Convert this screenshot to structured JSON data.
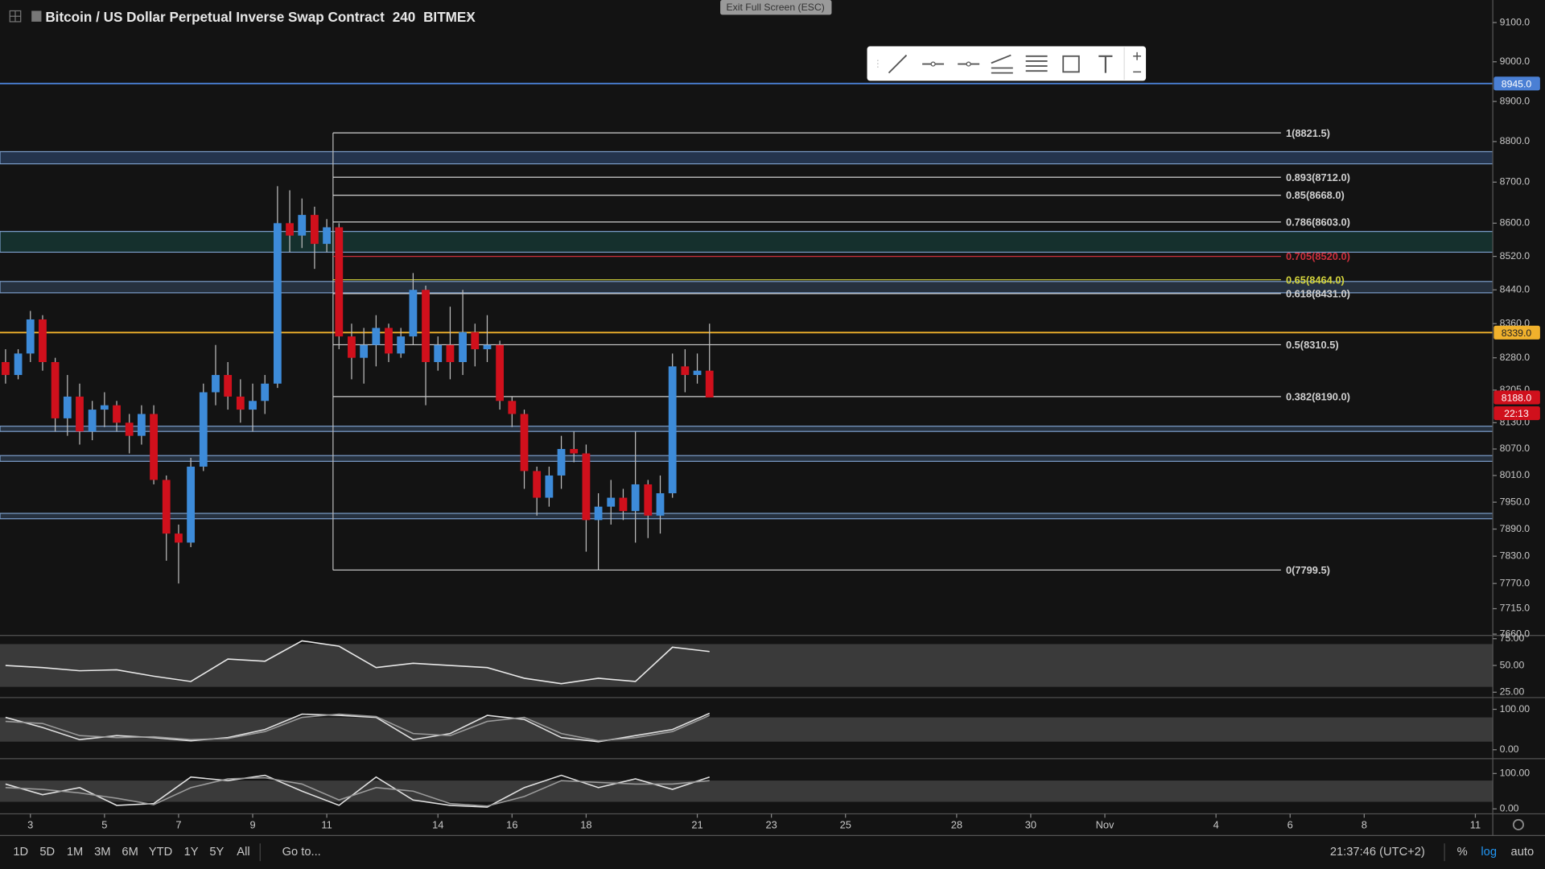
{
  "header": {
    "title": "Bitcoin / US Dollar Perpetual Inverse Swap Contract",
    "interval": "240",
    "exchange": "BITMEX",
    "exit_button": "Exit Full Screen (ESC)"
  },
  "bottom_bar": {
    "ranges": [
      "1D",
      "5D",
      "1M",
      "3M",
      "6M",
      "YTD",
      "1Y",
      "5Y",
      "All"
    ],
    "goto": "Go to...",
    "time": "21:37:46 (UTC+2)",
    "percent": "%",
    "log": "log",
    "auto": "auto"
  },
  "chart_data": [
    {
      "type": "candlestick",
      "log_scale": true,
      "up_color": "#3d8bd9",
      "down_color": "#d0101c",
      "xlim": [
        2.18,
        42.47
      ],
      "xticks": [
        3,
        5,
        7,
        9,
        11,
        14,
        16,
        18,
        21,
        23,
        25,
        28,
        30,
        {
          "value": 32,
          "label": "Nov"
        },
        {
          "value": 35,
          "label": "4"
        },
        {
          "value": 37,
          "label": "6"
        },
        {
          "value": 39,
          "label": "8"
        },
        {
          "value": 42,
          "label": "11"
        }
      ],
      "ylim": [
        7657,
        9158
      ],
      "yticks": [
        {
          "value": 9100,
          "label": "9100.0"
        },
        {
          "value": 9000,
          "label": "9000.0"
        },
        {
          "value": 8900,
          "label": "8900.0"
        },
        {
          "value": 8800,
          "label": "8800.0"
        },
        {
          "value": 8700,
          "label": "8700.0"
        },
        {
          "value": 8600,
          "label": "8600.0"
        },
        {
          "value": 8520,
          "label": "8520.0"
        },
        {
          "value": 8440,
          "label": "8440.0"
        },
        {
          "value": 8360,
          "label": "8360.0"
        },
        {
          "value": 8280,
          "label": "8280.0"
        },
        {
          "value": 8205,
          "label": "8205.0"
        },
        {
          "value": 8130,
          "label": "8130.0"
        },
        {
          "value": 8070,
          "label": "8070.0"
        },
        {
          "value": 8010,
          "label": "8010.0"
        },
        {
          "value": 7950,
          "label": "7950.0"
        },
        {
          "value": 7890,
          "label": "7890.0"
        },
        {
          "value": 7830,
          "label": "7830.0"
        },
        {
          "value": 7770,
          "label": "7770.0"
        },
        {
          "value": 7715,
          "label": "7715.0"
        },
        {
          "value": 7660,
          "label": "7660.0"
        }
      ],
      "candles": {
        "x": [
          2.33,
          2.67,
          3,
          3.33,
          3.67,
          4,
          4.33,
          4.67,
          5,
          5.33,
          5.67,
          6,
          6.33,
          6.67,
          7,
          7.33,
          7.67,
          8,
          8.33,
          8.67,
          9,
          9.33,
          9.67,
          10,
          10.33,
          10.67,
          11,
          11.33,
          11.67,
          12,
          12.33,
          12.67,
          13,
          13.33,
          13.67,
          14,
          14.33,
          14.67,
          15,
          15.33,
          15.67,
          16,
          16.33,
          16.67,
          17,
          17.33,
          17.67,
          18,
          18.33,
          18.67,
          19,
          19.33,
          19.67,
          20,
          20.33,
          20.67,
          21,
          21.33
        ],
        "open": [
          8270,
          8240,
          8290,
          8370,
          8270,
          8140,
          8190,
          8110,
          8160,
          8170,
          8130,
          8100,
          8150,
          8000,
          7880,
          7860,
          8030,
          8200,
          8240,
          8190,
          8160,
          8180,
          8220,
          8600,
          8570,
          8620,
          8550,
          8590,
          8330,
          8280,
          8310,
          8350,
          8290,
          8330,
          8440,
          8270,
          8310,
          8270,
          8340,
          8300,
          8310,
          8180,
          8150,
          8020,
          7960,
          8010,
          8070,
          8060,
          7910,
          7940,
          7960,
          7930,
          7990,
          7920,
          7970,
          8260,
          8240,
          8250
        ],
        "high": [
          8300,
          8300,
          8390,
          8380,
          8280,
          8240,
          8220,
          8180,
          8200,
          8180,
          8150,
          8170,
          8170,
          8010,
          7900,
          8050,
          8220,
          8310,
          8270,
          8230,
          8220,
          8240,
          8690,
          8680,
          8660,
          8640,
          8610,
          8600,
          8360,
          8350,
          8380,
          8360,
          8350,
          8480,
          8450,
          8330,
          8400,
          8440,
          8360,
          8380,
          8320,
          8190,
          8160,
          8030,
          8030,
          8100,
          8110,
          8080,
          7970,
          8000,
          7980,
          8110,
          8000,
          8010,
          8290,
          8300,
          8290,
          8360
        ],
        "low": [
          8220,
          8230,
          8270,
          8250,
          8110,
          8100,
          8080,
          8090,
          8120,
          8110,
          8060,
          8080,
          7990,
          7820,
          7770,
          7850,
          8020,
          8170,
          8160,
          8130,
          8110,
          8150,
          8210,
          8530,
          8540,
          8490,
          8530,
          8300,
          8230,
          8220,
          8260,
          8270,
          8280,
          8310,
          8170,
          8250,
          8230,
          8240,
          8260,
          8270,
          8160,
          8120,
          7980,
          7920,
          7940,
          7980,
          8040,
          7840,
          7800,
          7900,
          7910,
          7860,
          7870,
          7880,
          7960,
          8200,
          8220,
          8190
        ],
        "close": [
          8240,
          8290,
          8370,
          8270,
          8140,
          8190,
          8110,
          8160,
          8170,
          8130,
          8100,
          8150,
          8000,
          7880,
          7860,
          8030,
          8200,
          8240,
          8190,
          8160,
          8180,
          8220,
          8600,
          8570,
          8620,
          8550,
          8590,
          8330,
          8280,
          8310,
          8350,
          8290,
          8330,
          8440,
          8270,
          8310,
          8270,
          8340,
          8300,
          8310,
          8180,
          8150,
          8020,
          7960,
          8010,
          8070,
          8060,
          7910,
          7940,
          7960,
          7930,
          7990,
          7920,
          7970,
          8260,
          8240,
          8250,
          8188
        ]
      },
      "lines": [
        {
          "value": 8945,
          "color": "#4a7fd4"
        },
        {
          "value": 8339,
          "color": "#f0b12c"
        }
      ],
      "zones": [
        {
          "from": 8745,
          "to": 8775,
          "color": "#24344d"
        },
        {
          "from": 8530,
          "to": 8580,
          "color": "#15302d"
        },
        {
          "from": 8433,
          "to": 8460,
          "color": "#26313f"
        },
        {
          "from": 8110,
          "to": 8122,
          "color": "#26313f"
        },
        {
          "from": 8042,
          "to": 8055,
          "color": "#26313f"
        },
        {
          "from": 7913,
          "to": 7925,
          "color": "#26313f"
        }
      ],
      "fib": [
        {
          "label": "1(8821.5)",
          "value": 8821.5,
          "color": "#d0d0d0"
        },
        {
          "label": "0.893(8712.0)",
          "value": 8712,
          "color": "#d0d0d0"
        },
        {
          "label": "0.85(8668.0)",
          "value": 8668,
          "color": "#d0d0d0"
        },
        {
          "label": "0.786(8603.0)",
          "value": 8603,
          "color": "#d0d0d0"
        },
        {
          "label": "0.705(8520.0)",
          "value": 8520,
          "color": "#cc2f3c"
        },
        {
          "label": "0.65(8464.0)",
          "value": 8464,
          "color": "#d4d43c"
        },
        {
          "label": "0.618(8431.0)",
          "value": 8431,
          "color": "#d0d0d0"
        },
        {
          "label": "0.5(8310.5)",
          "value": 8310.5,
          "color": "#d0d0d0"
        },
        {
          "label": "0.382(8190.0)",
          "value": 8190,
          "color": "#d0d0d0"
        },
        {
          "label": "0(7799.5)",
          "value": 7799.5,
          "color": "#d0d0d0"
        }
      ],
      "price_tags": [
        {
          "value": 8945,
          "label": "8945.0",
          "color": "#4a7fd4"
        },
        {
          "value": 8339,
          "label": "8339.0",
          "color": "#f0b12c"
        },
        {
          "value": 8188,
          "label": "8188.0",
          "color": "#d0101c"
        }
      ],
      "countdown": "22:13"
    },
    {
      "type": "line",
      "xlim": [
        2.18,
        42.47
      ],
      "ylim": [
        20,
        78
      ],
      "band": [
        30,
        70
      ],
      "yticks": [
        {
          "value": 75,
          "label": "75.00"
        },
        {
          "value": 50,
          "label": "50.00"
        },
        {
          "value": 25,
          "label": "25.00"
        }
      ],
      "x": [
        2.33,
        3.33,
        4.33,
        5.33,
        6.33,
        7.33,
        8.33,
        9.33,
        10.33,
        11.33,
        12.33,
        13.33,
        14.33,
        15.33,
        16.33,
        17.33,
        18.33,
        19.33,
        20.33,
        21.33
      ],
      "series": [
        {
          "color": "#e8e8e8",
          "values": [
            50,
            48,
            45,
            46,
            40,
            35,
            56,
            54,
            73,
            68,
            48,
            52,
            50,
            48,
            38,
            33,
            38,
            35,
            67,
            63
          ]
        }
      ]
    },
    {
      "type": "line",
      "xlim": [
        2.18,
        42.47
      ],
      "ylim": [
        -22,
        129
      ],
      "band": [
        20,
        80
      ],
      "yticks": [
        {
          "value": 100,
          "label": "100.00"
        },
        {
          "value": 0,
          "label": "0.00"
        }
      ],
      "x": [
        2.33,
        3.33,
        4.33,
        5.33,
        6.33,
        7.33,
        8.33,
        9.33,
        10.33,
        11.33,
        12.33,
        13.33,
        14.33,
        15.33,
        16.33,
        17.33,
        18.33,
        19.33,
        20.33,
        21.33
      ],
      "series": [
        {
          "color": "#e0e0e0",
          "values": [
            80,
            55,
            25,
            35,
            30,
            22,
            30,
            50,
            88,
            85,
            80,
            25,
            40,
            85,
            75,
            30,
            20,
            35,
            50,
            90
          ]
        },
        {
          "color": "#9a9a9a",
          "values": [
            70,
            65,
            35,
            30,
            32,
            25,
            28,
            45,
            80,
            88,
            82,
            40,
            35,
            70,
            80,
            40,
            22,
            30,
            45,
            85
          ]
        }
      ]
    },
    {
      "type": "line",
      "xlim": [
        2.18,
        42.47
      ],
      "ylim": [
        -14,
        142
      ],
      "band": [
        20,
        80
      ],
      "yticks": [
        {
          "value": 100,
          "label": "100.00"
        },
        {
          "value": 0,
          "label": "0.00"
        }
      ],
      "x": [
        2.33,
        3.33,
        4.33,
        5.33,
        6.33,
        7.33,
        8.33,
        9.33,
        10.33,
        11.33,
        12.33,
        13.33,
        14.33,
        15.33,
        16.33,
        17.33,
        18.33,
        19.33,
        20.33,
        21.33
      ],
      "series": [
        {
          "color": "#e0e0e0",
          "values": [
            70,
            40,
            60,
            10,
            15,
            90,
            80,
            95,
            50,
            10,
            90,
            25,
            10,
            5,
            60,
            95,
            60,
            85,
            55,
            90
          ]
        },
        {
          "color": "#9a9a9a",
          "values": [
            60,
            55,
            45,
            30,
            12,
            60,
            85,
            88,
            70,
            25,
            60,
            50,
            15,
            8,
            35,
            80,
            75,
            70,
            70,
            80
          ]
        }
      ]
    }
  ]
}
